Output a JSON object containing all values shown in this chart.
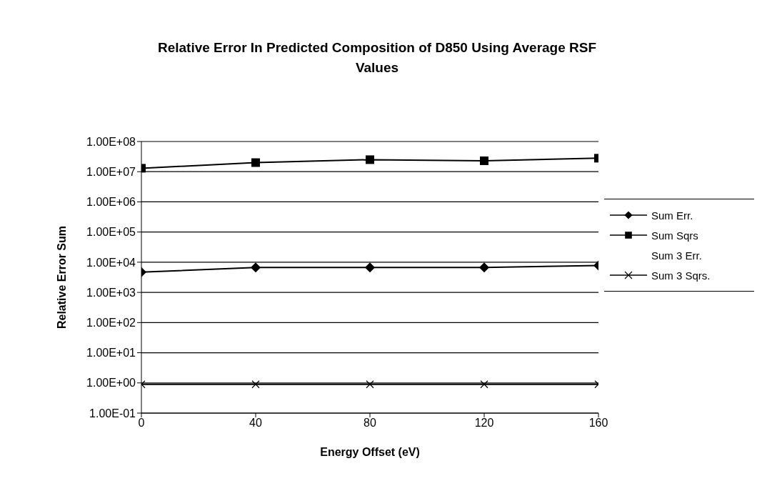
{
  "chart_data": {
    "type": "line",
    "title": "Relative Error In Predicted Composition of D850 Using Average RSF Values",
    "xlabel": "Energy Offset (eV)",
    "ylabel": "Relative Error Sum",
    "x": [
      0,
      40,
      80,
      120,
      160
    ],
    "xlim": [
      0,
      160
    ],
    "xticks": [
      0,
      40,
      80,
      120,
      160
    ],
    "log": "y",
    "ylim": [
      0.1,
      100000000
    ],
    "yticks": [
      {
        "value": 0.1,
        "label": "1.00E-01"
      },
      {
        "value": 1,
        "label": "1.00E+00"
      },
      {
        "value": 10,
        "label": "1.00E+01"
      },
      {
        "value": 100,
        "label": "1.00E+02"
      },
      {
        "value": 1000,
        "label": "1.00E+03"
      },
      {
        "value": 10000,
        "label": "1.00E+04"
      },
      {
        "value": 100000,
        "label": "1.00E+05"
      },
      {
        "value": 1000000,
        "label": "1.00E+06"
      },
      {
        "value": 10000000,
        "label": "1.00E+07"
      },
      {
        "value": 100000000,
        "label": "1.00E+08"
      }
    ],
    "grid": "y",
    "legend": "right",
    "series": [
      {
        "name": "Sum Err.",
        "color": "#000000",
        "marker": "diamond",
        "values": [
          4700,
          6700,
          6700,
          6700,
          7800
        ]
      },
      {
        "name": "Sum Sqrs",
        "color": "#000000",
        "marker": "square",
        "values": [
          13000000,
          20000000,
          25000000,
          23000000,
          28000000
        ]
      },
      {
        "name": "Sum 3 Err.",
        "marker": "none",
        "values": [
          null,
          null,
          null,
          null,
          null
        ]
      },
      {
        "name": "Sum 3 Sqrs.",
        "color": "#000000",
        "marker": "cross",
        "values": [
          0.9,
          0.9,
          0.9,
          0.9,
          0.9
        ]
      }
    ]
  }
}
